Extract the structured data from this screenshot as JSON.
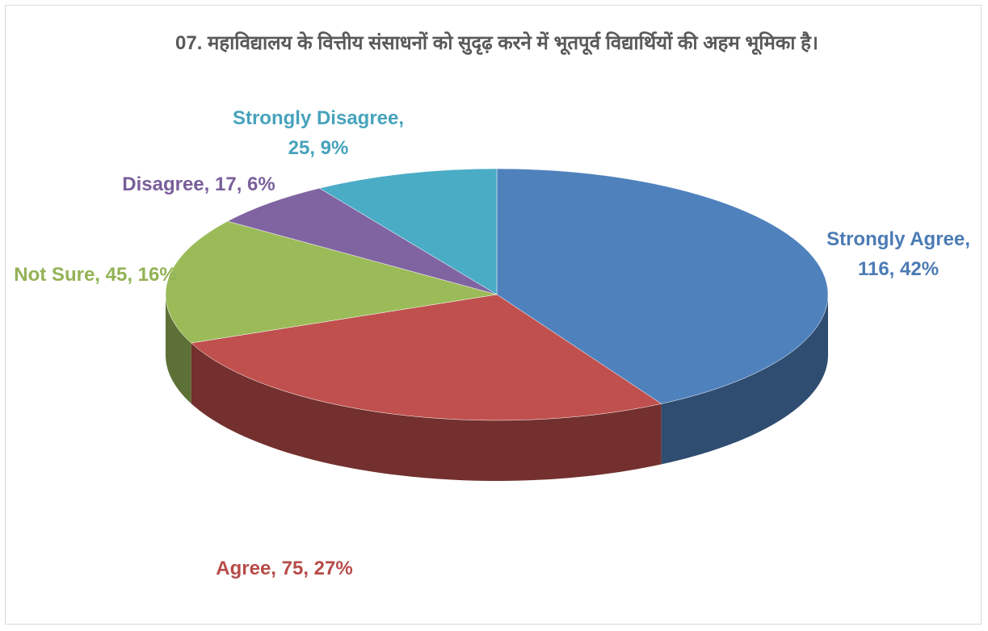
{
  "chart_data": {
    "type": "pie3d",
    "title": "07. महाविद्यालय के वित्तीय संसाधनों को सुदृढ़ करने में भूतपूर्व विद्यार्थियों की अहम भूमिका है।",
    "categories": [
      "Strongly Agree",
      "Agree",
      "Not Sure",
      "Disagree",
      "Strongly Disagree"
    ],
    "values": [
      116,
      75,
      45,
      17,
      25
    ],
    "value_labels": [
      [
        "Strongly Agree,",
        "116, 42%"
      ],
      [
        "Agree, 75, 27%"
      ],
      [
        "Not Sure, 45, 16%"
      ],
      [
        "Disagree, 17, 6%"
      ],
      [
        "Strongly Disagree,",
        "25, 9%"
      ]
    ],
    "colors": [
      "#4f81bd",
      "#c0504d",
      "#9bbb59",
      "#8064a2",
      "#4bacc6"
    ]
  }
}
